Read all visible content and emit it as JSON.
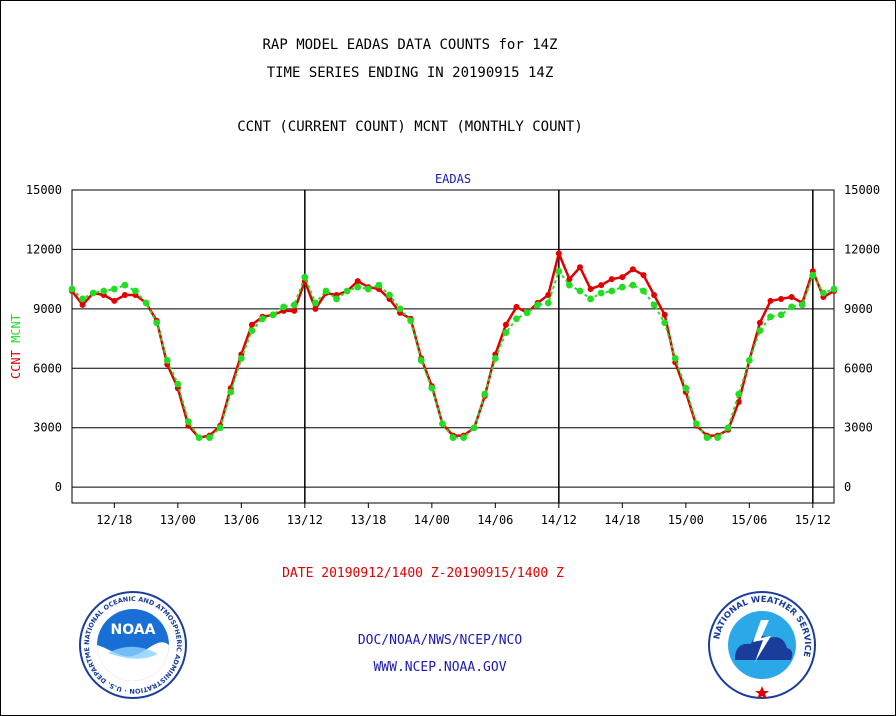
{
  "title_line1": "RAP MODEL EADAS DATA COUNTS for 14Z",
  "title_line2": "TIME SERIES ENDING IN 20190915 14Z",
  "subtitle": "CCNT (CURRENT COUNT) MCNT (MONTHLY COUNT)",
  "date_range": "DATE 20190912/1400 Z-20190915/1400 Z",
  "footer_org": "DOC/NOAA/NWS/NCEP/NCO",
  "footer_url": "WWW.NCEP.NOAA.GOV",
  "logos": {
    "noaa": "NOAA",
    "noaa_ring": "NATIONAL OCEANIC AND ATMOSPHERIC ADMINISTRATION · U.S. DEPARTMENT OF COMMERCE ·",
    "nws_ring": "NATIONAL WEATHER SERVICE"
  },
  "chart_data": {
    "type": "line",
    "title": "EADAS",
    "ylabel_left": [
      "CCNT",
      "MCNT"
    ],
    "ylim": [
      -800,
      15000
    ],
    "yticks": [
      0,
      3000,
      6000,
      9000,
      12000,
      15000
    ],
    "ytick_labels": [
      "0",
      "3000",
      "6000",
      "9000",
      "12000",
      "15000"
    ],
    "xlim": [
      0,
      72
    ],
    "xticks": [
      4,
      10,
      16,
      22,
      28,
      34,
      40,
      46,
      52,
      58,
      64,
      70
    ],
    "xtick_labels": [
      "12/18",
      "13/00",
      "13/06",
      "13/12",
      "13/18",
      "14/00",
      "14/06",
      "14/12",
      "14/18",
      "15/00",
      "15/06",
      "15/12"
    ],
    "day_boundaries": [
      22,
      46,
      70
    ],
    "grid": true,
    "colors": {
      "CCNT": "#e00000",
      "MCNT": "#22dd22",
      "title": "#1a1ab4"
    },
    "series": [
      {
        "name": "CCNT",
        "values": [
          9900,
          9200,
          9800,
          9700,
          9400,
          9700,
          9700,
          9300,
          8400,
          6200,
          5000,
          3100,
          2500,
          2600,
          3100,
          5000,
          6700,
          8200,
          8600,
          8700,
          8900,
          8900,
          10400,
          9000,
          9800,
          9700,
          9900,
          10400,
          10100,
          10000,
          9500,
          8800,
          8500,
          6500,
          5100,
          3200,
          2600,
          2600,
          3000,
          4600,
          6700,
          8200,
          9100,
          8800,
          9300,
          9700,
          11800,
          10500,
          11100,
          10000,
          10200,
          10500,
          10600,
          11000,
          10700,
          9700,
          8700,
          6300,
          4800,
          3100,
          2600,
          2600,
          2900,
          4300,
          6400,
          8300,
          9400,
          9500,
          9600,
          9300,
          10900,
          9600,
          9900
        ]
      },
      {
        "name": "MCNT",
        "values": [
          10000,
          9500,
          9800,
          9900,
          10000,
          10200,
          9900,
          9300,
          8300,
          6400,
          5200,
          3300,
          2500,
          2500,
          3000,
          4800,
          6500,
          7900,
          8500,
          8700,
          9100,
          9200,
          10600,
          9300,
          9900,
          9500,
          9900,
          10100,
          10000,
          10200,
          9700,
          9000,
          8400,
          6400,
          5000,
          3200,
          2500,
          2500,
          3000,
          4700,
          6500,
          7800,
          8500,
          8800,
          9200,
          9300,
          10900,
          10200,
          9900,
          9500,
          9800,
          9900,
          10100,
          10200,
          9900,
          9200,
          8300,
          6500,
          5000,
          3200,
          2500,
          2500,
          3000,
          4700,
          6400,
          7900,
          8600,
          8700,
          9100,
          9200,
          10700,
          9800,
          10000
        ]
      }
    ]
  }
}
